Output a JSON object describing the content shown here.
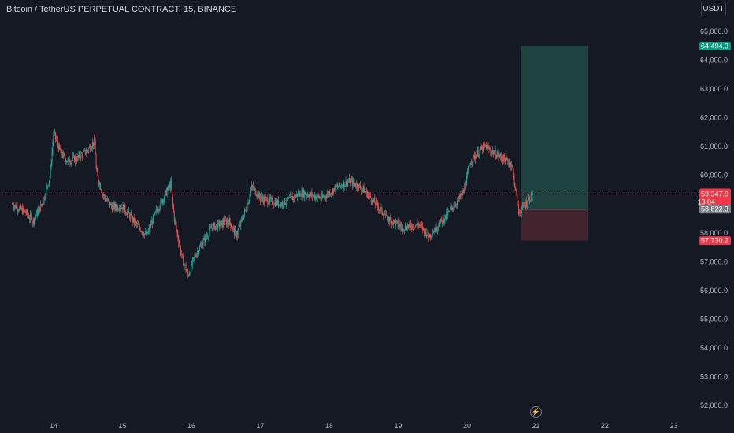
{
  "header": {
    "title": "Bitcoin / TetherUS PERPETUAL CONTRACT, 15, BINANCE",
    "currency": "USDT"
  },
  "icons": {
    "replay": "lightning-icon"
  },
  "chart_data": {
    "type": "candlestick",
    "x_ticks": [
      "14",
      "15",
      "16",
      "17",
      "18",
      "19",
      "20",
      "21",
      "22",
      "23"
    ],
    "y_ticks": [
      "52,000.0",
      "53,000.0",
      "54,000.0",
      "55,000.0",
      "56,000.0",
      "57,000.0",
      "58,000.0",
      "59,000.0",
      "60,000.0",
      "61,000.0",
      "62,000.0",
      "63,000.0",
      "64,000.0",
      "65,000.0"
    ],
    "ylim": [
      51800,
      65800
    ],
    "price_path": [
      {
        "day": 13.4,
        "price": 59000
      },
      {
        "day": 13.6,
        "price": 58700
      },
      {
        "day": 13.7,
        "price": 58400
      },
      {
        "day": 13.85,
        "price": 59100
      },
      {
        "day": 13.95,
        "price": 60000
      },
      {
        "day": 14.0,
        "price": 61500
      },
      {
        "day": 14.1,
        "price": 60800
      },
      {
        "day": 14.2,
        "price": 60500
      },
      {
        "day": 14.35,
        "price": 60600
      },
      {
        "day": 14.5,
        "price": 60900
      },
      {
        "day": 14.6,
        "price": 61200
      },
      {
        "day": 14.62,
        "price": 60100
      },
      {
        "day": 14.72,
        "price": 59300
      },
      {
        "day": 14.85,
        "price": 58900
      },
      {
        "day": 15.0,
        "price": 58900
      },
      {
        "day": 15.2,
        "price": 58300
      },
      {
        "day": 15.35,
        "price": 57900
      },
      {
        "day": 15.5,
        "price": 58800
      },
      {
        "day": 15.7,
        "price": 59700
      },
      {
        "day": 15.75,
        "price": 58500
      },
      {
        "day": 15.85,
        "price": 57300
      },
      {
        "day": 15.95,
        "price": 56500
      },
      {
        "day": 16.05,
        "price": 57200
      },
      {
        "day": 16.3,
        "price": 58200
      },
      {
        "day": 16.55,
        "price": 58400
      },
      {
        "day": 16.65,
        "price": 57900
      },
      {
        "day": 16.8,
        "price": 58900
      },
      {
        "day": 16.88,
        "price": 59600
      },
      {
        "day": 17.0,
        "price": 59200
      },
      {
        "day": 17.3,
        "price": 59000
      },
      {
        "day": 17.6,
        "price": 59400
      },
      {
        "day": 17.9,
        "price": 59200
      },
      {
        "day": 18.05,
        "price": 59500
      },
      {
        "day": 18.3,
        "price": 59800
      },
      {
        "day": 18.5,
        "price": 59500
      },
      {
        "day": 18.85,
        "price": 58500
      },
      {
        "day": 19.05,
        "price": 58200
      },
      {
        "day": 19.3,
        "price": 58300
      },
      {
        "day": 19.45,
        "price": 57900
      },
      {
        "day": 19.7,
        "price": 58600
      },
      {
        "day": 19.95,
        "price": 59400
      },
      {
        "day": 20.05,
        "price": 60500
      },
      {
        "day": 20.25,
        "price": 61000
      },
      {
        "day": 20.45,
        "price": 60700
      },
      {
        "day": 20.65,
        "price": 60400
      },
      {
        "day": 20.75,
        "price": 58700
      },
      {
        "day": 20.85,
        "price": 59000
      },
      {
        "day": 20.95,
        "price": 59347.9
      }
    ],
    "position": {
      "type": "long",
      "entry": 58822.3,
      "target": 64494.3,
      "stop": 57730.2,
      "start_day": 20.78,
      "end_day": 21.75
    },
    "last_price": {
      "value": 59347.9,
      "label": "59,347.9",
      "countdown": "13:04"
    },
    "price_tags": {
      "target": "64,494.3",
      "entry": "58,822.3",
      "stop": "57,730.2"
    },
    "colors": {
      "up": "#26a69a",
      "down": "#ef5350",
      "target_zone": "#1f4a45",
      "stop_zone": "#4a2630",
      "target_tag": "#089981",
      "stop_tag": "#f23645",
      "entry_tag": "#787b86",
      "price_line": "#f23645"
    }
  }
}
